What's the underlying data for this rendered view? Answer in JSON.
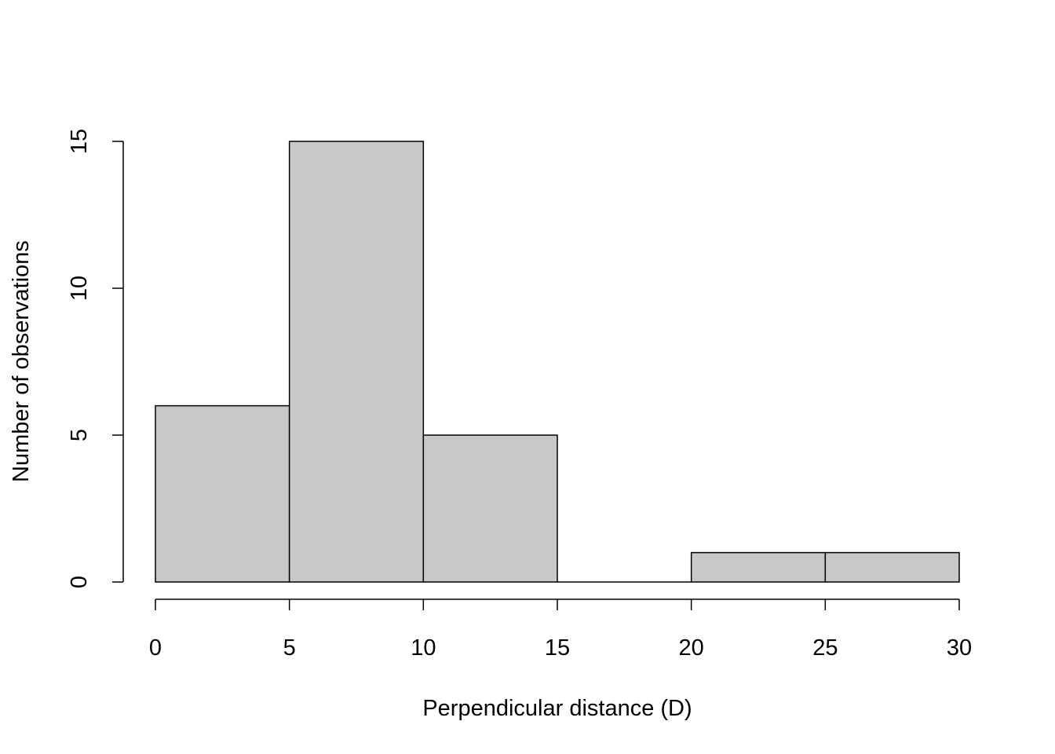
{
  "chart_data": {
    "type": "bar",
    "subtype": "histogram",
    "title": "",
    "xlabel": "Perpendicular distance (D)",
    "ylabel": "Number of observations",
    "bins": [
      [
        0,
        5
      ],
      [
        5,
        10
      ],
      [
        10,
        15
      ],
      [
        15,
        20
      ],
      [
        20,
        25
      ],
      [
        25,
        30
      ]
    ],
    "values": [
      6,
      15,
      5,
      0,
      1,
      1
    ],
    "xlim": [
      0,
      30
    ],
    "ylim": [
      0,
      15
    ],
    "xticks": [
      "0",
      "5",
      "10",
      "15",
      "20",
      "25",
      "30"
    ],
    "yticks": [
      "0",
      "5",
      "10",
      "15"
    ],
    "grid": false,
    "bar_color": "#C8C8C8",
    "edge_color": "#000000"
  }
}
